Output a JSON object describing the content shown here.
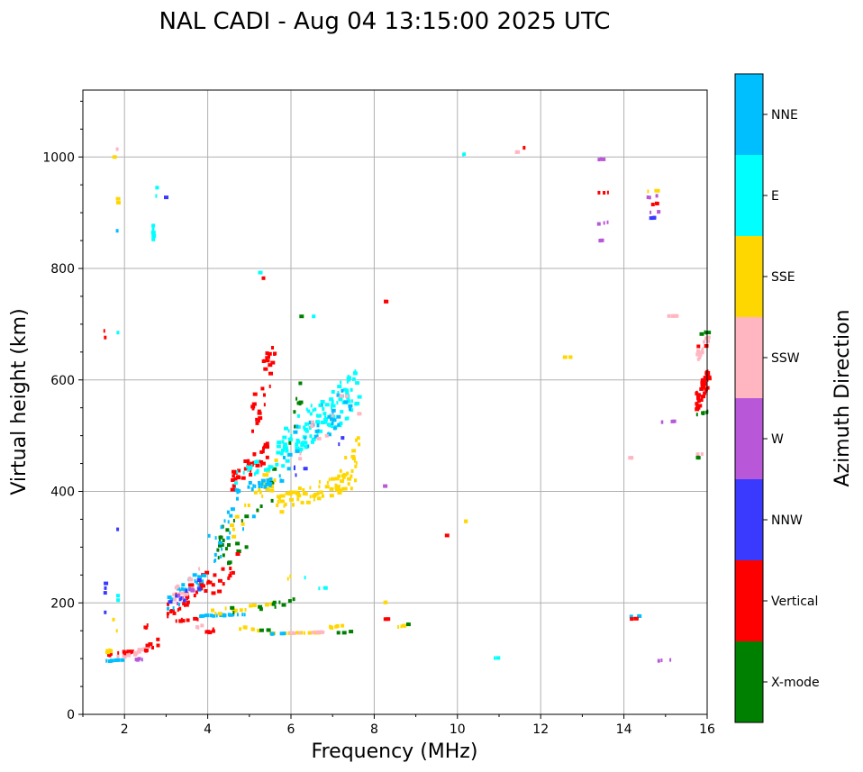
{
  "chart_data": {
    "type": "scatter",
    "title": "NAL CADI - Aug 04 13:15:00 2025 UTC",
    "xlabel": "Frequency (MHz)",
    "ylabel": "Virtual height (km)",
    "xlim": [
      1,
      16
    ],
    "ylim": [
      0,
      1120
    ],
    "xticks": [
      2,
      4,
      6,
      8,
      10,
      12,
      14,
      16
    ],
    "yticks": [
      0,
      200,
      400,
      600,
      800,
      1000
    ],
    "grid": true,
    "colorbar": {
      "label": "Azimuth Direction",
      "categories": [
        "X-mode",
        "Vertical",
        "NNW",
        "W",
        "SSW",
        "SSE",
        "E",
        "NNE"
      ],
      "colors": [
        "#008000",
        "#ff0000",
        "#3a3aff",
        "#b858d8",
        "#ffb6c1",
        "#ffd700",
        "#00ffff",
        "#00bfff"
      ]
    },
    "segments": [
      {
        "cat": "Vertical",
        "x1": 1.5,
        "y1": 103,
        "x2": 2.2,
        "y2": 115,
        "n": 14
      },
      {
        "cat": "NNE",
        "x1": 1.5,
        "y1": 93,
        "x2": 2.0,
        "y2": 100,
        "n": 8
      },
      {
        "cat": "SSW",
        "x1": 1.8,
        "y1": 100,
        "x2": 2.4,
        "y2": 115,
        "n": 10
      },
      {
        "cat": "SSE",
        "x1": 1.5,
        "y1": 110,
        "x2": 1.9,
        "y2": 120,
        "n": 5
      },
      {
        "cat": "W",
        "x1": 2.1,
        "y1": 92,
        "x2": 2.5,
        "y2": 105,
        "n": 4
      },
      {
        "cat": "SSW",
        "x1": 2.2,
        "y1": 105,
        "x2": 2.6,
        "y2": 125,
        "n": 6
      },
      {
        "cat": "Vertical",
        "x1": 2.4,
        "y1": 110,
        "x2": 2.9,
        "y2": 140,
        "n": 8
      },
      {
        "cat": "Vertical",
        "x1": 2.3,
        "y1": 140,
        "x2": 2.6,
        "y2": 165,
        "n": 4
      },
      {
        "cat": "NNW",
        "x1": 1.5,
        "y1": 218,
        "x2": 1.5,
        "y2": 235,
        "n": 3
      },
      {
        "cat": "NNW",
        "x1": 1.5,
        "y1": 181,
        "x2": 1.5,
        "y2": 185,
        "n": 1
      },
      {
        "cat": "E",
        "x1": 1.8,
        "y1": 205,
        "x2": 1.8,
        "y2": 213,
        "n": 2
      },
      {
        "cat": "SSE",
        "x1": 1.7,
        "y1": 168,
        "x2": 1.7,
        "y2": 172,
        "n": 1
      },
      {
        "cat": "SSE",
        "x1": 1.8,
        "y1": 148,
        "x2": 1.8,
        "y2": 152,
        "n": 1
      },
      {
        "cat": "Vertical",
        "x1": 3.0,
        "y1": 170,
        "x2": 4.0,
        "y2": 260,
        "n": 30
      },
      {
        "cat": "NNE",
        "x1": 3.0,
        "y1": 175,
        "x2": 3.9,
        "y2": 270,
        "n": 22
      },
      {
        "cat": "SSW",
        "x1": 3.0,
        "y1": 185,
        "x2": 3.8,
        "y2": 265,
        "n": 10
      },
      {
        "cat": "NNW",
        "x1": 3.0,
        "y1": 180,
        "x2": 3.8,
        "y2": 250,
        "n": 8
      },
      {
        "cat": "W",
        "x1": 3.1,
        "y1": 190,
        "x2": 3.7,
        "y2": 240,
        "n": 6
      },
      {
        "cat": "Vertical",
        "x1": 3.2,
        "y1": 165,
        "x2": 3.8,
        "y2": 175,
        "n": 8
      },
      {
        "cat": "Vertical",
        "x1": 3.9,
        "y1": 145,
        "x2": 4.2,
        "y2": 155,
        "n": 5
      },
      {
        "cat": "SSW",
        "x1": 3.7,
        "y1": 155,
        "x2": 3.9,
        "y2": 162,
        "n": 3
      },
      {
        "cat": "NNE",
        "x1": 3.8,
        "y1": 176,
        "x2": 5.0,
        "y2": 180,
        "n": 18
      },
      {
        "cat": "SSE",
        "x1": 4.0,
        "y1": 178,
        "x2": 5.5,
        "y2": 200,
        "n": 14
      },
      {
        "cat": "X-mode",
        "x1": 4.4,
        "y1": 180,
        "x2": 6.2,
        "y2": 210,
        "n": 12
      },
      {
        "cat": "SSE",
        "x1": 4.7,
        "y1": 158,
        "x2": 5.3,
        "y2": 146,
        "n": 6
      },
      {
        "cat": "SSE",
        "x1": 5.3,
        "y1": 145,
        "x2": 6.8,
        "y2": 147,
        "n": 14
      },
      {
        "cat": "SSW",
        "x1": 5.8,
        "y1": 145,
        "x2": 6.8,
        "y2": 148,
        "n": 10
      },
      {
        "cat": "X-mode",
        "x1": 5.2,
        "y1": 150,
        "x2": 5.6,
        "y2": 153,
        "n": 3
      },
      {
        "cat": "NNE",
        "x1": 5.5,
        "y1": 144,
        "x2": 5.9,
        "y2": 146,
        "n": 4
      },
      {
        "cat": "SSE",
        "x1": 6.8,
        "y1": 150,
        "x2": 7.3,
        "y2": 165,
        "n": 6
      },
      {
        "cat": "X-mode",
        "x1": 7.0,
        "y1": 145,
        "x2": 7.5,
        "y2": 150,
        "n": 3
      },
      {
        "cat": "E",
        "x1": 6.6,
        "y1": 225,
        "x2": 6.8,
        "y2": 227,
        "n": 2
      },
      {
        "cat": "E",
        "x1": 6.3,
        "y1": 245,
        "x2": 6.4,
        "y2": 247,
        "n": 1
      },
      {
        "cat": "SSE",
        "x1": 5.9,
        "y1": 240,
        "x2": 6.0,
        "y2": 250,
        "n": 2
      },
      {
        "cat": "X-mode",
        "x1": 4.2,
        "y1": 230,
        "x2": 5.6,
        "y2": 470,
        "n": 28
      },
      {
        "cat": "SSE",
        "x1": 4.5,
        "y1": 290,
        "x2": 5.6,
        "y2": 470,
        "n": 22
      },
      {
        "cat": "NNE",
        "x1": 4.0,
        "y1": 250,
        "x2": 5.2,
        "y2": 440,
        "n": 20
      },
      {
        "cat": "Vertical",
        "x1": 4.0,
        "y1": 200,
        "x2": 4.7,
        "y2": 300,
        "n": 14
      },
      {
        "cat": "NNE",
        "x1": 4.6,
        "y1": 395,
        "x2": 5.8,
        "y2": 430,
        "n": 25
      },
      {
        "cat": "Vertical",
        "x1": 4.5,
        "y1": 400,
        "x2": 5.4,
        "y2": 490,
        "n": 40
      },
      {
        "cat": "E",
        "x1": 4.6,
        "y1": 410,
        "x2": 5.6,
        "y2": 470,
        "n": 20
      },
      {
        "cat": "Vertical",
        "x1": 5.0,
        "y1": 480,
        "x2": 5.6,
        "y2": 700,
        "n": 30
      },
      {
        "cat": "E",
        "x1": 5.6,
        "y1": 430,
        "x2": 7.6,
        "y2": 620,
        "n": 120
      },
      {
        "cat": "NNE",
        "x1": 5.8,
        "y1": 430,
        "x2": 7.4,
        "y2": 600,
        "n": 30
      },
      {
        "cat": "SSE",
        "x1": 5.6,
        "y1": 360,
        "x2": 7.6,
        "y2": 440,
        "n": 60
      },
      {
        "cat": "SSE",
        "x1": 7.0,
        "y1": 380,
        "x2": 7.6,
        "y2": 500,
        "n": 20
      },
      {
        "cat": "X-mode",
        "x1": 5.9,
        "y1": 460,
        "x2": 6.2,
        "y2": 620,
        "n": 8
      },
      {
        "cat": "SSW",
        "x1": 6.0,
        "y1": 440,
        "x2": 7.6,
        "y2": 600,
        "n": 10
      },
      {
        "cat": "NNW",
        "x1": 6.0,
        "y1": 420,
        "x2": 7.2,
        "y2": 500,
        "n": 6
      },
      {
        "cat": "X-mode",
        "x1": 6.2,
        "y1": 712,
        "x2": 6.2,
        "y2": 716,
        "n": 1
      },
      {
        "cat": "E",
        "x1": 6.5,
        "y1": 712,
        "x2": 6.5,
        "y2": 716,
        "n": 1
      },
      {
        "cat": "E",
        "x1": 5.2,
        "y1": 790,
        "x2": 5.2,
        "y2": 795,
        "n": 1
      },
      {
        "cat": "Vertical",
        "x1": 5.3,
        "y1": 780,
        "x2": 5.3,
        "y2": 785,
        "n": 1
      },
      {
        "cat": "Vertical",
        "x1": 1.5,
        "y1": 676,
        "x2": 1.5,
        "y2": 688,
        "n": 2
      },
      {
        "cat": "E",
        "x1": 1.8,
        "y1": 683,
        "x2": 1.8,
        "y2": 687,
        "n": 1
      },
      {
        "cat": "NNW",
        "x1": 1.8,
        "y1": 330,
        "x2": 1.8,
        "y2": 334,
        "n": 1
      },
      {
        "cat": "NNE",
        "x1": 1.8,
        "y1": 865,
        "x2": 1.8,
        "y2": 870,
        "n": 1
      },
      {
        "cat": "SSE",
        "x1": 1.8,
        "y1": 918,
        "x2": 1.8,
        "y2": 925,
        "n": 2
      },
      {
        "cat": "SSW",
        "x1": 1.8,
        "y1": 1012,
        "x2": 1.8,
        "y2": 1016,
        "n": 1
      },
      {
        "cat": "SSE",
        "x1": 1.7,
        "y1": 998,
        "x2": 1.7,
        "y2": 1002,
        "n": 1
      },
      {
        "cat": "E",
        "x1": 2.65,
        "y1": 852,
        "x2": 2.65,
        "y2": 877,
        "n": 5
      },
      {
        "cat": "E",
        "x1": 2.75,
        "y1": 930,
        "x2": 2.75,
        "y2": 945,
        "n": 2
      },
      {
        "cat": "NNW",
        "x1": 2.95,
        "y1": 925,
        "x2": 2.95,
        "y2": 930,
        "n": 1
      },
      {
        "cat": "Vertical",
        "x1": 8.2,
        "y1": 740,
        "x2": 8.3,
        "y2": 742,
        "n": 2
      },
      {
        "cat": "W",
        "x1": 8.2,
        "y1": 408,
        "x2": 8.3,
        "y2": 412,
        "n": 1
      },
      {
        "cat": "SSE",
        "x1": 8.2,
        "y1": 200,
        "x2": 8.3,
        "y2": 202,
        "n": 2
      },
      {
        "cat": "Vertical",
        "x1": 8.2,
        "y1": 170,
        "x2": 8.3,
        "y2": 172,
        "n": 2
      },
      {
        "cat": "SSE",
        "x1": 8.4,
        "y1": 153,
        "x2": 8.7,
        "y2": 160,
        "n": 4
      },
      {
        "cat": "X-mode",
        "x1": 8.6,
        "y1": 160,
        "x2": 8.8,
        "y2": 162,
        "n": 2
      },
      {
        "cat": "Vertical",
        "x1": 9.7,
        "y1": 320,
        "x2": 9.7,
        "y2": 322,
        "n": 1
      },
      {
        "cat": "SSE",
        "x1": 10.1,
        "y1": 345,
        "x2": 10.2,
        "y2": 347,
        "n": 2
      },
      {
        "cat": "E",
        "x1": 10.1,
        "y1": 1004,
        "x2": 10.2,
        "y2": 1006,
        "n": 2
      },
      {
        "cat": "E",
        "x1": 10.85,
        "y1": 100,
        "x2": 10.95,
        "y2": 102,
        "n": 2
      },
      {
        "cat": "SSW",
        "x1": 11.3,
        "y1": 1007,
        "x2": 11.4,
        "y2": 1009,
        "n": 2
      },
      {
        "cat": "Vertical",
        "x1": 11.5,
        "y1": 1015,
        "x2": 11.6,
        "y2": 1017,
        "n": 2
      },
      {
        "cat": "SSE",
        "x1": 12.5,
        "y1": 640,
        "x2": 12.8,
        "y2": 642,
        "n": 3
      },
      {
        "cat": "W",
        "x1": 13.35,
        "y1": 995,
        "x2": 13.6,
        "y2": 997,
        "n": 3
      },
      {
        "cat": "Vertical",
        "x1": 13.35,
        "y1": 935,
        "x2": 13.6,
        "y2": 937,
        "n": 3
      },
      {
        "cat": "W",
        "x1": 13.35,
        "y1": 879,
        "x2": 13.6,
        "y2": 883,
        "n": 3
      },
      {
        "cat": "W",
        "x1": 13.35,
        "y1": 849,
        "x2": 13.6,
        "y2": 852,
        "n": 3
      },
      {
        "cat": "SSE",
        "x1": 14.55,
        "y1": 938,
        "x2": 14.85,
        "y2": 940,
        "n": 3
      },
      {
        "cat": "W",
        "x1": 14.55,
        "y1": 925,
        "x2": 14.85,
        "y2": 932,
        "n": 3
      },
      {
        "cat": "Vertical",
        "x1": 14.55,
        "y1": 913,
        "x2": 14.85,
        "y2": 918,
        "n": 3
      },
      {
        "cat": "W",
        "x1": 14.55,
        "y1": 900,
        "x2": 14.85,
        "y2": 902,
        "n": 3
      },
      {
        "cat": "NNW",
        "x1": 14.55,
        "y1": 890,
        "x2": 14.85,
        "y2": 892,
        "n": 3
      },
      {
        "cat": "SSW",
        "x1": 14.95,
        "y1": 714,
        "x2": 15.45,
        "y2": 716,
        "n": 5
      },
      {
        "cat": "W",
        "x1": 14.85,
        "y1": 524,
        "x2": 15.2,
        "y2": 526,
        "n": 4
      },
      {
        "cat": "SSW",
        "x1": 14.1,
        "y1": 460,
        "x2": 14.35,
        "y2": 462,
        "n": 3
      },
      {
        "cat": "NNE",
        "x1": 14.1,
        "y1": 175,
        "x2": 14.35,
        "y2": 177,
        "n": 3
      },
      {
        "cat": "Vertical",
        "x1": 14.1,
        "y1": 171,
        "x2": 14.35,
        "y2": 172,
        "n": 3
      },
      {
        "cat": "W",
        "x1": 14.8,
        "y1": 96,
        "x2": 15.15,
        "y2": 98,
        "n": 4
      },
      {
        "cat": "Vertical",
        "x1": 15.7,
        "y1": 540,
        "x2": 16.0,
        "y2": 625,
        "n": 60
      },
      {
        "cat": "SSW",
        "x1": 15.7,
        "y1": 630,
        "x2": 16.0,
        "y2": 680,
        "n": 16
      },
      {
        "cat": "X-mode",
        "x1": 15.7,
        "y1": 535,
        "x2": 16.0,
        "y2": 545,
        "n": 6
      },
      {
        "cat": "X-mode",
        "x1": 15.7,
        "y1": 680,
        "x2": 16.0,
        "y2": 688,
        "n": 4
      },
      {
        "cat": "Vertical",
        "x1": 15.7,
        "y1": 660,
        "x2": 16.0,
        "y2": 662,
        "n": 3
      },
      {
        "cat": "SSW",
        "x1": 15.7,
        "y1": 466,
        "x2": 16.0,
        "y2": 468,
        "n": 3
      },
      {
        "cat": "X-mode",
        "x1": 15.7,
        "y1": 460,
        "x2": 16.0,
        "y2": 462,
        "n": 3
      }
    ]
  }
}
